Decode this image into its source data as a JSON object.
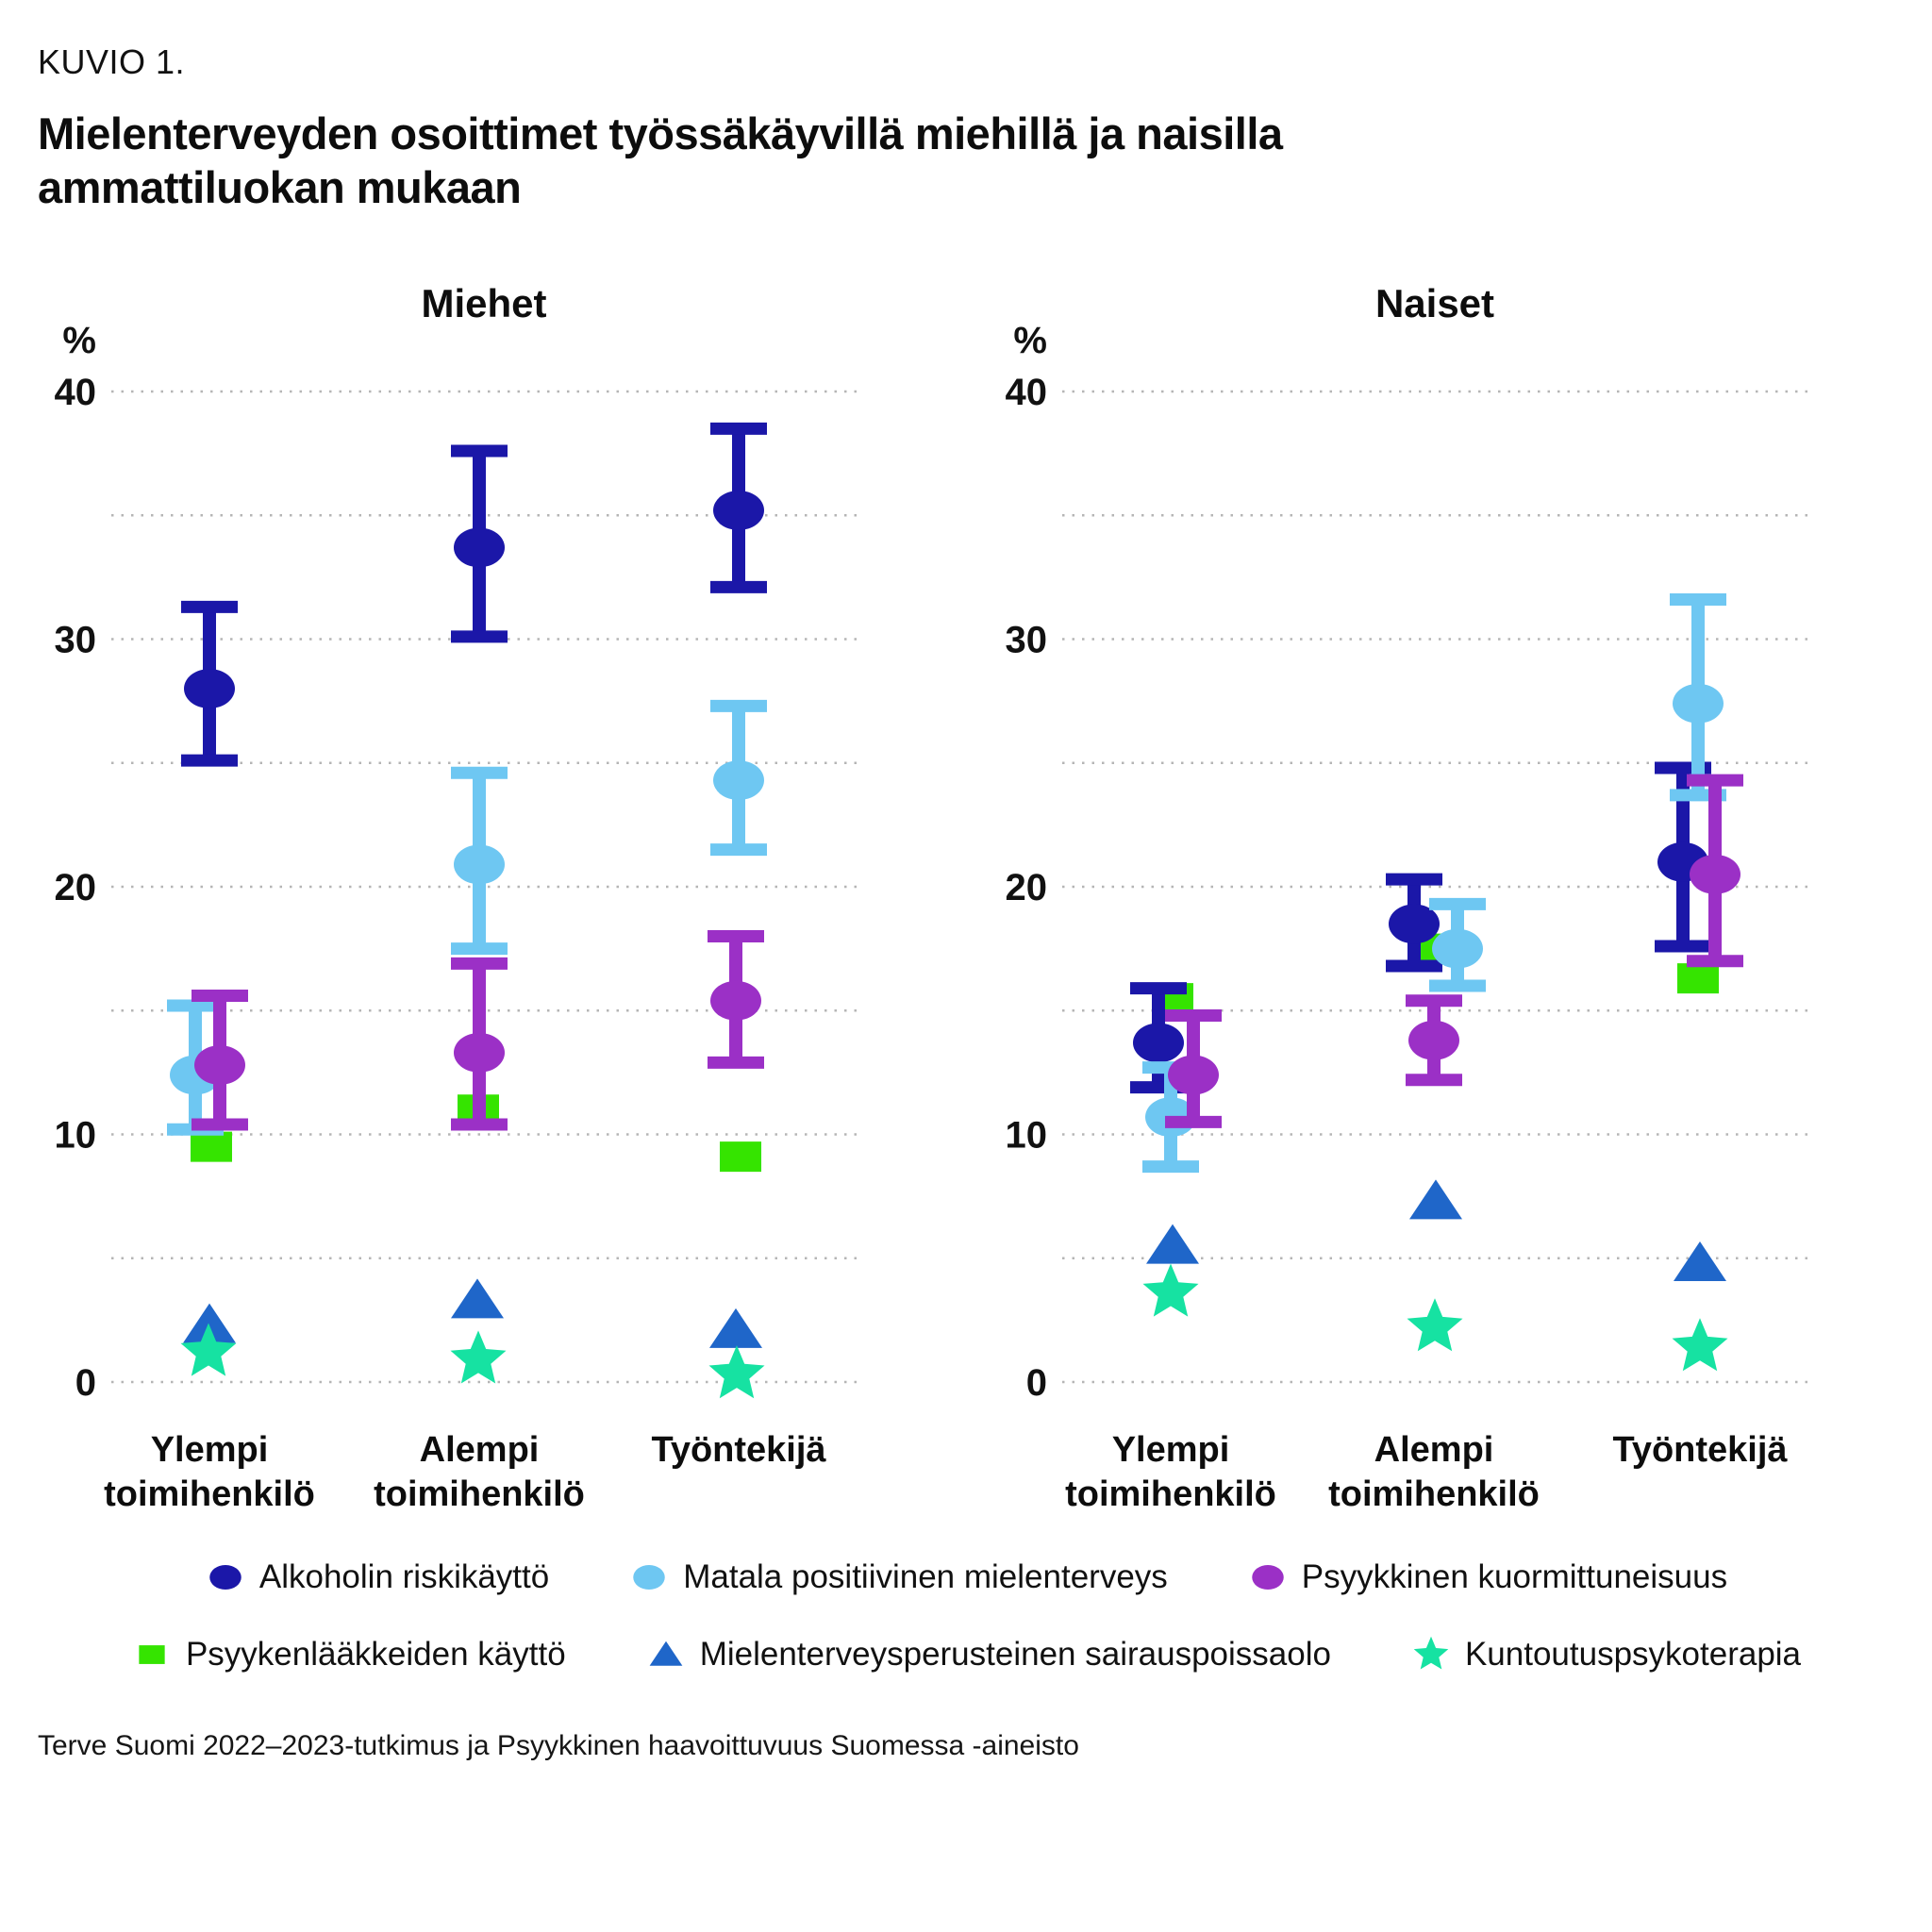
{
  "header": {
    "kicker": "KUVIO 1.",
    "title": "Mielenterveyden osoittimet työssäkäyvillä miehillä ja naisilla ammattiluokan mukaan",
    "title_lines": [
      "Mielenterveyden osoittimet työssäkäyvillä miehillä ja naisilla",
      "ammattiluokan mukaan"
    ]
  },
  "footer": {
    "source": "Terve Suomi 2022–2023-tutkimus ja Psyykkinen haavoittuvuus Suomessa -aineisto"
  },
  "chart_data": {
    "type": "scatter",
    "unit_label": "%",
    "ylim": [
      0,
      40
    ],
    "yticks_major": [
      0,
      10,
      20,
      30,
      40
    ],
    "yticks_minor": [
      5,
      15,
      25,
      35
    ],
    "grid": "dotted-horizontal",
    "legend_position": "bottom",
    "categories": [
      "Ylempi toimihenkilö",
      "Alempi toimihenkilö",
      "Työntekijä"
    ],
    "category_lines": [
      [
        "Ylempi",
        "toimihenkilö"
      ],
      [
        "Alempi",
        "toimihenkilö"
      ],
      [
        "Työntekijä",
        ""
      ]
    ],
    "series_meta": [
      {
        "name": "Alkoholin riskikäyttö",
        "marker": "circle",
        "color": "#1b17a8",
        "error_bars": true
      },
      {
        "name": "Matala positiivinen mielenterveys",
        "marker": "circle",
        "color": "#6ec7f2",
        "error_bars": true
      },
      {
        "name": "Psyykkinen kuormittuneisuus",
        "marker": "circle",
        "color": "#9b30c6",
        "error_bars": true
      },
      {
        "name": "Psyykenlääkkeiden käyttö",
        "marker": "square",
        "color": "#35e400",
        "error_bars": false
      },
      {
        "name": "Mielenterveysperusteinen sairauspoissaolo",
        "marker": "triangle",
        "color": "#1f66c9",
        "error_bars": false
      },
      {
        "name": "Kuntoutuspsykoterapia",
        "marker": "star",
        "color": "#16e2a2",
        "error_bars": false
      }
    ],
    "panels": [
      {
        "title": "Miehet",
        "series": [
          {
            "name": "Alkoholin riskikäyttö",
            "values": [
              28.0,
              33.7,
              35.2
            ],
            "ci_low": [
              25.1,
              30.1,
              32.1
            ],
            "ci_high": [
              31.3,
              37.6,
              38.5
            ]
          },
          {
            "name": "Matala positiivinen mielenterveys",
            "values": [
              12.4,
              20.9,
              24.3
            ],
            "ci_low": [
              10.2,
              17.5,
              21.5
            ],
            "ci_high": [
              15.2,
              24.6,
              27.3
            ]
          },
          {
            "name": "Psyykkinen kuormittuneisuus",
            "values": [
              12.8,
              13.3,
              15.4
            ],
            "ci_low": [
              10.4,
              10.4,
              12.9
            ],
            "ci_high": [
              15.6,
              16.9,
              18.0
            ]
          },
          {
            "name": "Psyykenlääkkeiden käyttö",
            "values": [
              9.5,
              11.0,
              9.1
            ]
          },
          {
            "name": "Mielenterveysperusteinen sairauspoissaolo",
            "values": [
              2.3,
              3.3,
              2.1
            ]
          },
          {
            "name": "Kuntoutuspsykoterapia",
            "values": [
              1.2,
              0.9,
              0.3
            ]
          }
        ],
        "x_offsets": [
          [
            0,
            0,
            0
          ],
          [
            -15,
            0,
            0
          ],
          [
            11,
            0,
            -3
          ],
          [
            2,
            -1,
            2
          ],
          [
            0,
            -2,
            -3
          ],
          [
            -1,
            -1,
            -2
          ]
        ]
      },
      {
        "title": "Naiset",
        "series": [
          {
            "name": "Alkoholin riskikäyttö",
            "values": [
              13.7,
              18.5,
              21.0
            ],
            "ci_low": [
              11.9,
              16.8,
              17.6
            ],
            "ci_high": [
              15.9,
              20.3,
              24.8
            ]
          },
          {
            "name": "Matala positiivinen mielenterveys",
            "values": [
              10.7,
              17.5,
              27.4
            ],
            "ci_low": [
              8.7,
              16.0,
              23.7
            ],
            "ci_high": [
              12.7,
              19.3,
              31.6
            ]
          },
          {
            "name": "Psyykkinen kuormittuneisuus",
            "values": [
              12.4,
              13.8,
              20.5
            ],
            "ci_low": [
              10.5,
              12.2,
              17.0
            ],
            "ci_high": [
              14.8,
              15.4,
              24.3
            ]
          },
          {
            "name": "Psyykenlääkkeiden käyttö",
            "values": [
              15.5,
              17.5,
              16.3
            ]
          },
          {
            "name": "Mielenterveysperusteinen sairauspoissaolo",
            "values": [
              5.5,
              7.3,
              4.8
            ]
          },
          {
            "name": "Kuntoutuspsykoterapia",
            "values": [
              3.6,
              2.2,
              1.4
            ]
          }
        ],
        "x_offsets": [
          [
            -13,
            -21,
            -18
          ],
          [
            0,
            25,
            -2
          ],
          [
            24,
            0,
            16
          ],
          [
            2,
            -2,
            -2
          ],
          [
            2,
            2,
            0
          ],
          [
            0,
            1,
            0
          ]
        ]
      }
    ],
    "legend_rows": [
      [
        0,
        1,
        2
      ],
      [
        3,
        4,
        5
      ]
    ]
  }
}
